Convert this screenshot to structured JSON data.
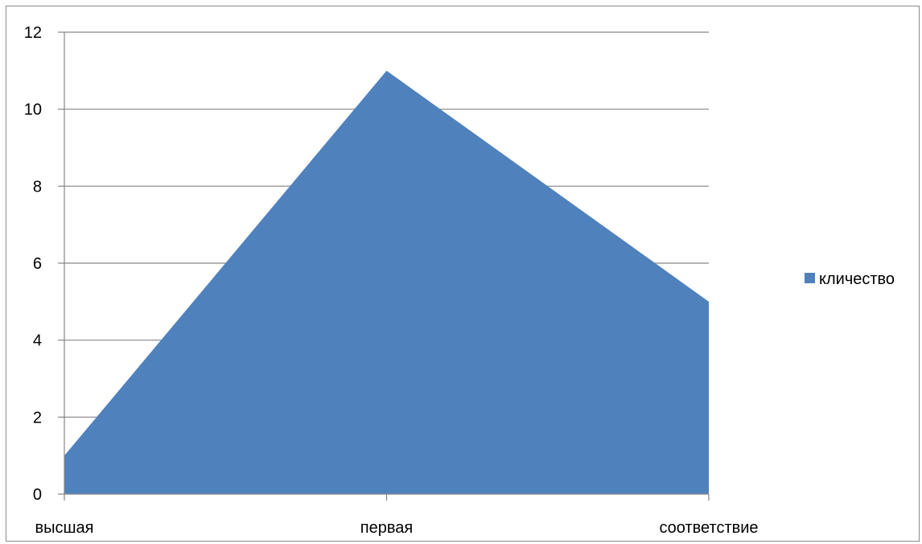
{
  "chart_data": {
    "type": "area",
    "categories": [
      "высшая",
      "первая",
      "соответствие"
    ],
    "series": [
      {
        "name": "кличество",
        "values": [
          1,
          11,
          5
        ],
        "color": "#4f81bd"
      }
    ],
    "title": "",
    "xlabel": "",
    "ylabel": "",
    "ylim": [
      0,
      12
    ],
    "yticks": [
      0,
      2,
      4,
      6,
      8,
      10,
      12
    ],
    "grid": true,
    "legend_position": "right",
    "colors": {
      "gridline": "#868686",
      "axis": "#868686",
      "frame": "#8a8a8a"
    }
  }
}
